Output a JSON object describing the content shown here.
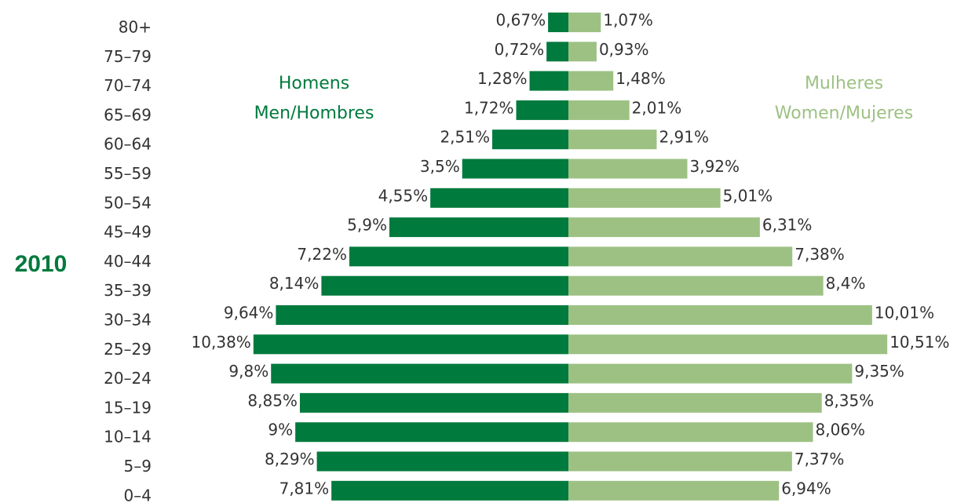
{
  "chart_data": {
    "type": "pyramid",
    "year": "2010",
    "categories": [
      "80+",
      "75–79",
      "70–74",
      "65–69",
      "60–64",
      "55–59",
      "50–54",
      "45–49",
      "40–44",
      "35–39",
      "30–34",
      "25–29",
      "20–24",
      "15–19",
      "10–14",
      "5–9",
      "0–4"
    ],
    "series": [
      {
        "name": [
          "Homens",
          "Men/Hombres"
        ],
        "color": "#007a3d",
        "values": [
          0.67,
          0.72,
          1.28,
          1.72,
          2.51,
          3.5,
          4.55,
          5.9,
          7.22,
          8.14,
          9.64,
          10.38,
          9.8,
          8.85,
          9,
          8.29,
          7.81
        ],
        "value_labels": [
          "0,67%",
          "0,72%",
          "1,28%",
          "1,72%",
          "2,51%",
          "3,5%",
          "4,55%",
          "5,9%",
          "7,22%",
          "8,14%",
          "9,64%",
          "10,38%",
          "9,8%",
          "8,85%",
          "9%",
          "8,29%",
          "7,81%"
        ]
      },
      {
        "name": [
          "Mulheres",
          "Women/Mujeres"
        ],
        "color": "#9dc183",
        "values": [
          1.07,
          0.93,
          1.48,
          2.01,
          2.91,
          3.92,
          5.01,
          6.31,
          7.38,
          8.4,
          10.01,
          10.51,
          9.35,
          8.35,
          8.06,
          7.37,
          6.94
        ],
        "value_labels": [
          "1,07%",
          "0,93%",
          "1,48%",
          "2,01%",
          "2,91%",
          "3,92%",
          "5,01%",
          "6,31%",
          "7,38%",
          "8,4%",
          "10,01%",
          "10,51%",
          "9,35%",
          "8,35%",
          "8,06%",
          "7,37%",
          "6,94%"
        ]
      }
    ]
  }
}
